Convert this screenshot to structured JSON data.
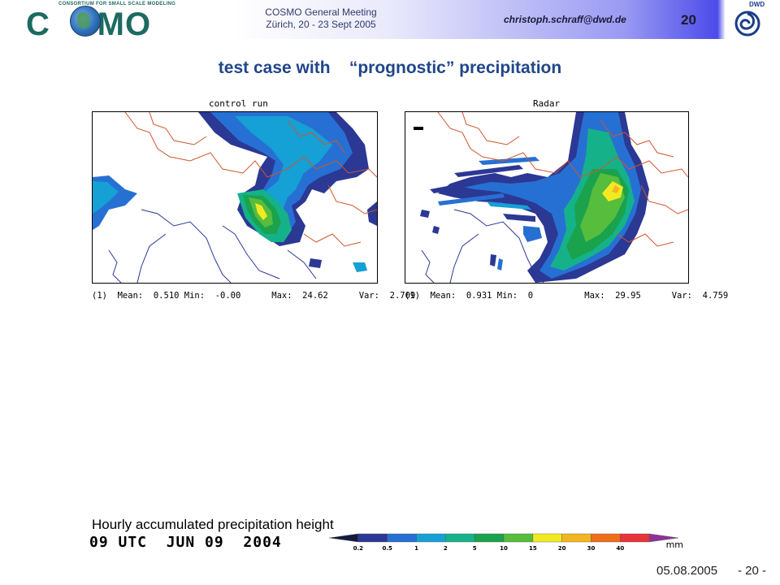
{
  "header": {
    "logo_text": "COSMO",
    "logo_subtitle": "CONSORTIUM FOR SMALL SCALE MODELING",
    "meeting_line1": "COSMO General Meeting",
    "meeting_line2": "Zürich, 20 - 23 Sept 2005",
    "email": "christoph.schraff@dwd.de",
    "slide_number": "20",
    "dwd_label": "DWD"
  },
  "title": "test case with    “prognostic” precipitation",
  "maps": [
    {
      "caption": "control run",
      "stats": "(1)  Mean:  0.510 Min:  -0.00      Max:  24.62      Var:  2.709"
    },
    {
      "caption": "Radar",
      "stats": "(1)  Mean:  0.931 Min:  0          Max:  29.95      Var:  4.759"
    }
  ],
  "bottom_label": "Hourly accumulated precipitation height",
  "time_label": "09 UTC  JUN 09  2004",
  "colorbar": {
    "ticks": [
      "0.2",
      "0.5",
      "1",
      "2",
      "5",
      "10",
      "15",
      "20",
      "30",
      "40"
    ],
    "unit": "mm",
    "colors": [
      "#151b3f",
      "#2b3894",
      "#2770d3",
      "#15a0d6",
      "#15b28a",
      "#1aa24d",
      "#57bd3d",
      "#f1ea22",
      "#f3b61f",
      "#ef6d1b",
      "#e8333a",
      "#8e3295"
    ]
  },
  "footer": {
    "date": "05.08.2005",
    "page": "- 20 -"
  }
}
